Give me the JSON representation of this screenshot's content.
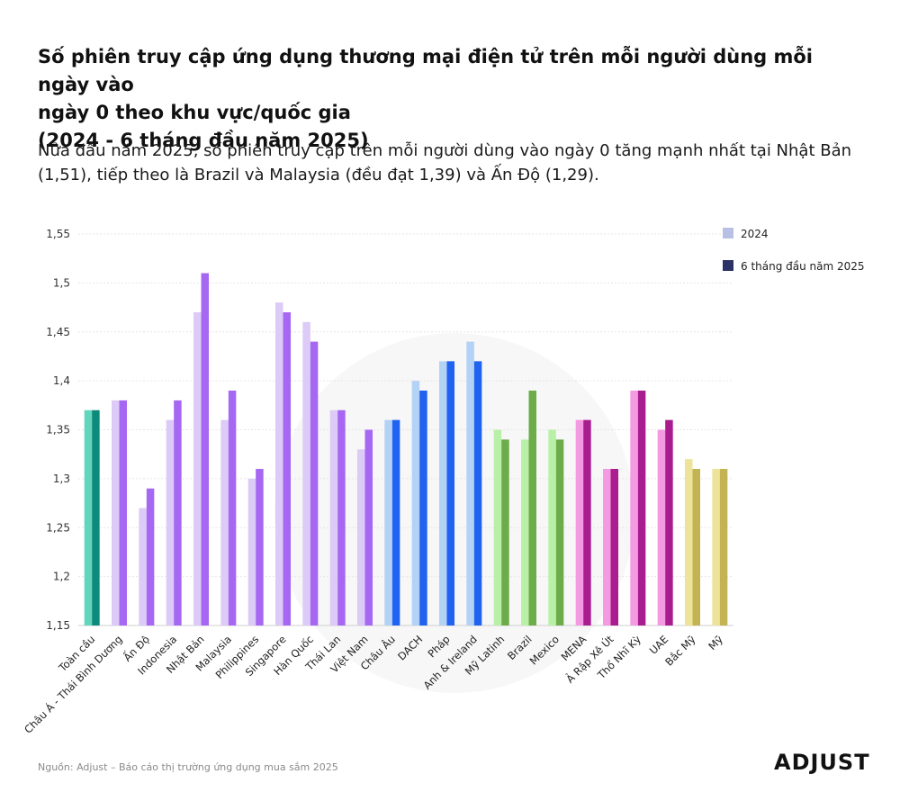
{
  "title_lines": [
    "Số phiên truy cập ứng dụng thương mại điện tử trên mỗi người dùng mỗi ngày vào",
    "ngày 0 theo khu vực/quốc gia",
    "(2024 - 6 tháng đầu năm 2025)"
  ],
  "subtitle_lines": [
    "Nửa đầu năm 2025, số phiên truy cập trên mỗi người dùng vào ngày 0 tăng mạnh nhất tại Nhật Bản",
    "(1,51), tiếp theo là Brazil và Malaysia (đều đạt 1,39) và Ấn Độ (1,29)."
  ],
  "source": "Nguồn: Adjust – Báo cáo thị trường ứng dụng mua sắm 2025",
  "brand": "ADJUST",
  "chart_data": {
    "type": "bar",
    "ylim": [
      1.15,
      1.55
    ],
    "yticks": [
      "1,15",
      "1,2",
      "1,25",
      "1,3",
      "1,35",
      "1,4",
      "1,45",
      "1,5",
      "1,55"
    ],
    "grid": true,
    "legend_position": "top-right",
    "categories": [
      "Toàn cầu",
      "Châu Á - Thái Bình Dương",
      "Ấn Độ",
      "Indonesia",
      "Nhật Bản",
      "Malaysia",
      "Philippines",
      "Singapore",
      "Hàn Quốc",
      "Thái Lan",
      "Việt Nam",
      "Châu Âu",
      "DACH",
      "Pháp",
      "Anh & Ireland",
      "Mỹ Latinh",
      "Brazil",
      "Mexico",
      "MENA",
      "Ả Rập Xê Út",
      "Thổ Nhĩ Kỳ",
      "UAE",
      "Bắc Mỹ",
      "Mỹ"
    ],
    "series": [
      {
        "name": "2024",
        "legend_color": "#b9c0e6",
        "values": [
          1.37,
          1.38,
          1.27,
          1.36,
          1.47,
          1.36,
          1.3,
          1.48,
          1.46,
          1.37,
          1.33,
          1.36,
          1.4,
          1.42,
          1.44,
          1.35,
          1.34,
          1.35,
          1.36,
          1.31,
          1.39,
          1.35,
          1.32,
          1.31
        ]
      },
      {
        "name": "6 tháng đầu năm 2025",
        "legend_color": "#2b3366",
        "values": [
          1.37,
          1.38,
          1.29,
          1.38,
          1.51,
          1.39,
          1.31,
          1.47,
          1.44,
          1.37,
          1.35,
          1.36,
          1.39,
          1.42,
          1.42,
          1.34,
          1.39,
          1.34,
          1.36,
          1.31,
          1.39,
          1.36,
          1.31,
          1.31
        ]
      }
    ],
    "colors_2024": [
      "#62d6bd",
      "#dccbf6",
      "#dccbf6",
      "#dccbf6",
      "#dccbf6",
      "#dccbf6",
      "#dccbf6",
      "#dccbf6",
      "#dccbf6",
      "#dccbf6",
      "#dccbf6",
      "#b3d2f6",
      "#b3d2f6",
      "#b3d2f6",
      "#b3d2f6",
      "#b9f0a8",
      "#b9f0a8",
      "#b9f0a8",
      "#f49ae2",
      "#f49ae2",
      "#f49ae2",
      "#f49ae2",
      "#ede49a",
      "#ede49a"
    ],
    "colors_2025": [
      "#0c8a7b",
      "#a667f2",
      "#a667f2",
      "#a667f2",
      "#a667f2",
      "#a667f2",
      "#a667f2",
      "#a667f2",
      "#a667f2",
      "#a667f2",
      "#a667f2",
      "#1f63f0",
      "#1f63f0",
      "#1f63f0",
      "#1f63f0",
      "#6dac4a",
      "#6dac4a",
      "#6dac4a",
      "#a91d8f",
      "#a91d8f",
      "#a91d8f",
      "#a91d8f",
      "#c3b354",
      "#c3b354"
    ]
  }
}
